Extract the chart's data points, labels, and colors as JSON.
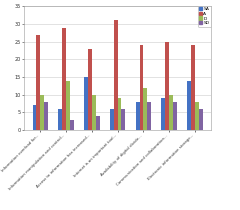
{
  "categories": [
    "Information overload for...",
    "Information manipulation and control...",
    "Access to information has increased...",
    "Internet is an important tool...",
    "Availability of digital divide...",
    "Communication and collaboration...",
    "Electronic information storage..."
  ],
  "series": {
    "SA": [
      7,
      6,
      15,
      6,
      8,
      9,
      14
    ],
    "A": [
      27,
      29,
      23,
      31,
      24,
      25,
      24
    ],
    "D": [
      10,
      14,
      10,
      9,
      12,
      10,
      8
    ],
    "SD": [
      8,
      3,
      4,
      6,
      8,
      8,
      6
    ]
  },
  "colors": {
    "SA": "#4472c4",
    "A": "#c0504d",
    "D": "#9bbb59",
    "SD": "#8064a2"
  },
  "ylim": [
    0,
    35
  ],
  "yticks": [
    0,
    5,
    10,
    15,
    20,
    25,
    30,
    35
  ],
  "bar_width": 0.15,
  "legend_labels": [
    "SA",
    "A",
    "D",
    "SD"
  ],
  "background_color": "#ffffff"
}
